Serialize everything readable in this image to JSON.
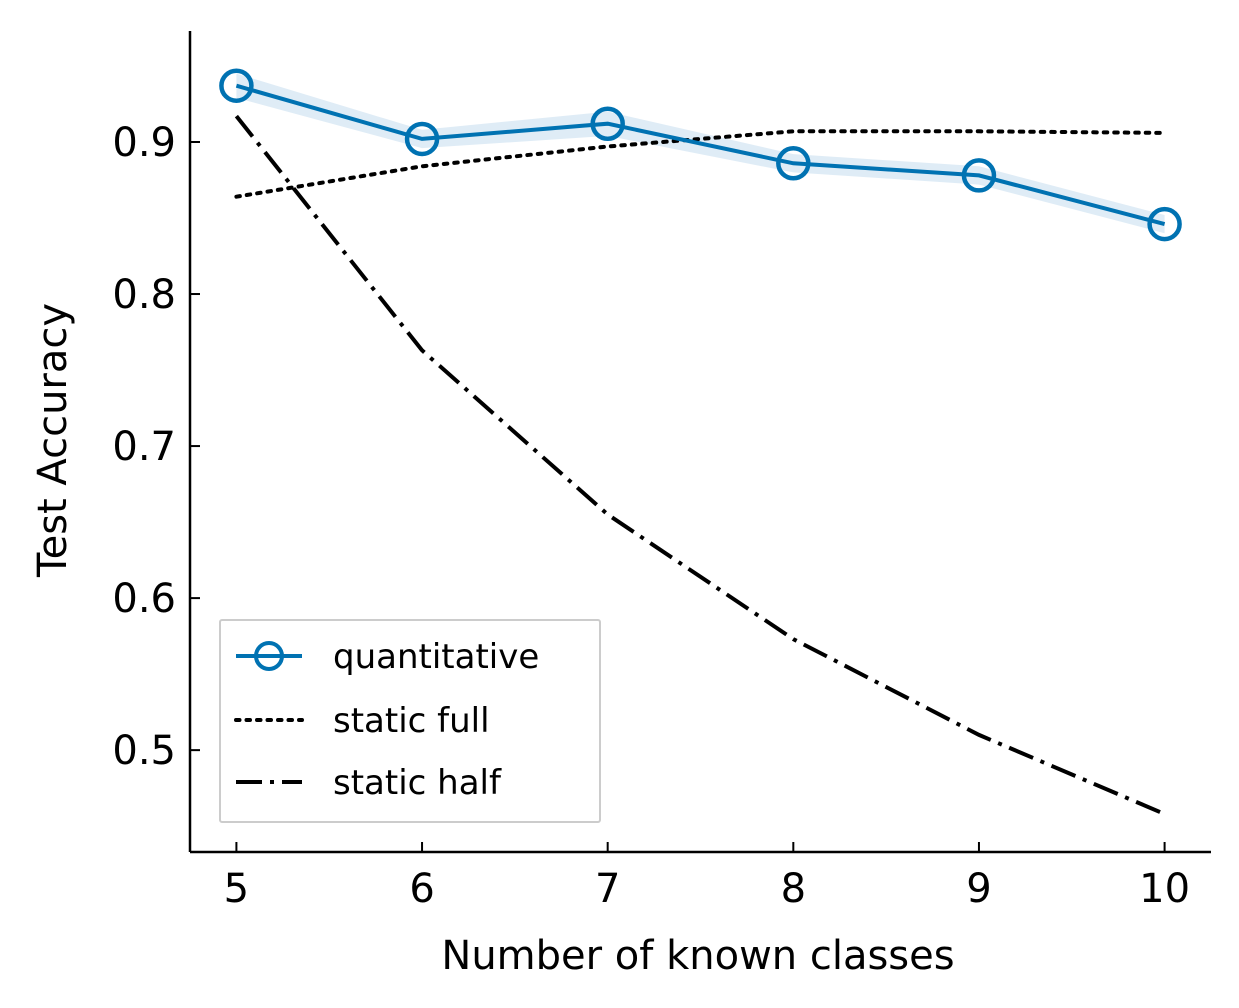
{
  "chart_data": {
    "type": "line",
    "title": "",
    "xlabel": "Number of known classes",
    "ylabel": "Test Accuracy",
    "x": [
      5,
      6,
      7,
      8,
      9,
      10
    ],
    "xlim": [
      4.75,
      10.25
    ],
    "ylim": [
      0.433,
      0.973
    ],
    "x_ticks": [
      "5",
      "6",
      "7",
      "8",
      "9",
      "10"
    ],
    "y_ticks": [
      "0.5",
      "0.6",
      "0.7",
      "0.8",
      "0.9"
    ],
    "y_tick_values": [
      0.5,
      0.6,
      0.7,
      0.8,
      0.9
    ],
    "grid": false,
    "legend_position": "lower-left",
    "series": [
      {
        "name": "quantitative",
        "values": [
          0.937,
          0.902,
          0.912,
          0.886,
          0.878,
          0.846
        ],
        "band_lower": [
          0.929,
          0.896,
          0.904,
          0.88,
          0.872,
          0.84
        ],
        "band_upper": [
          0.945,
          0.908,
          0.92,
          0.892,
          0.884,
          0.852
        ],
        "color": "#0072b2",
        "band_color": "#d4e6f3",
        "style": "solid",
        "marker": "open-circle"
      },
      {
        "name": "static full",
        "values": [
          0.864,
          0.884,
          0.897,
          0.907,
          0.907,
          0.906
        ],
        "color": "#000000",
        "style": "dotted"
      },
      {
        "name": "static half",
        "values": [
          0.917,
          0.763,
          0.655,
          0.573,
          0.51,
          0.458
        ],
        "color": "#000000",
        "style": "dashdot"
      }
    ]
  }
}
